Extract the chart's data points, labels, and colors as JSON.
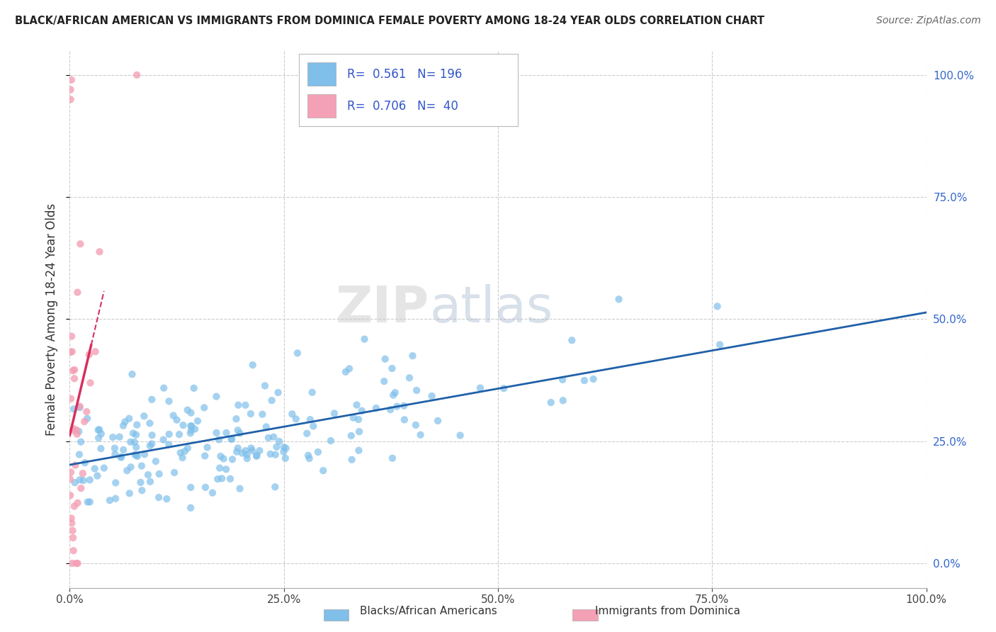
{
  "title": "BLACK/AFRICAN AMERICAN VS IMMIGRANTS FROM DOMINICA FEMALE POVERTY AMONG 18-24 YEAR OLDS CORRELATION CHART",
  "source": "Source: ZipAtlas.com",
  "ylabel": "Female Poverty Among 18-24 Year Olds",
  "blue_R": 0.561,
  "blue_N": 196,
  "pink_R": 0.706,
  "pink_N": 40,
  "blue_color": "#7fbfea",
  "pink_color": "#f4a0b5",
  "blue_line_color": "#2060a8",
  "pink_line_color": "#d63060",
  "watermark_zip": "ZIP",
  "watermark_atlas": "atlas",
  "legend_labels": [
    "Blacks/African Americans",
    "Immigrants from Dominica"
  ],
  "ytick_labels": [
    "0.0%",
    "25.0%",
    "50.0%",
    "75.0%",
    "100.0%"
  ],
  "ytick_values": [
    0.0,
    0.25,
    0.5,
    0.75,
    1.0
  ],
  "xtick_labels": [
    "0.0%",
    "25.0%",
    "50.0%",
    "75.0%",
    "100.0%"
  ],
  "xtick_values": [
    0.0,
    0.25,
    0.5,
    0.75,
    1.0
  ],
  "xlim": [
    0.0,
    1.0
  ],
  "ylim": [
    -0.05,
    1.05
  ]
}
